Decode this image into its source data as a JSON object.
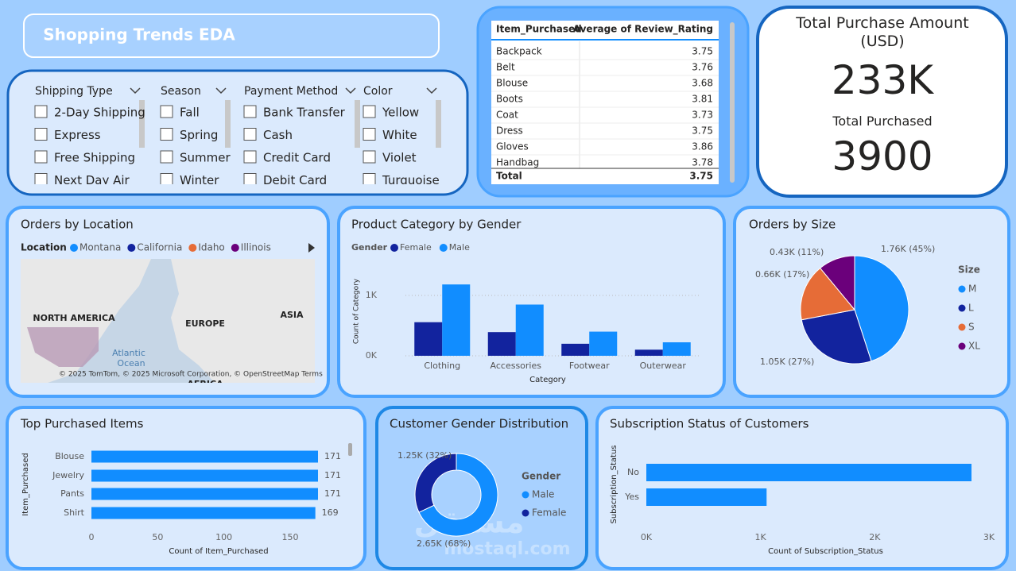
{
  "header": {
    "title": "Shopping Trends EDA"
  },
  "slicers": [
    {
      "name": "Shipping Type",
      "items": [
        "2-Day Shipping",
        "Express",
        "Free Shipping",
        "Next Day Air"
      ]
    },
    {
      "name": "Season",
      "items": [
        "Fall",
        "Spring",
        "Summer",
        "Winter"
      ]
    },
    {
      "name": "Payment Method",
      "items": [
        "Bank Transfer",
        "Cash",
        "Credit Card",
        "Debit Card"
      ]
    },
    {
      "name": "Color",
      "items": [
        "Yellow",
        "White",
        "Violet",
        "Turquoise"
      ]
    }
  ],
  "table": {
    "columns": [
      "Item_Purchased",
      "Average of Review_Rating"
    ],
    "rows": [
      [
        "Backpack",
        3.75
      ],
      [
        "Belt",
        3.76
      ],
      [
        "Blouse",
        3.68
      ],
      [
        "Boots",
        3.81
      ],
      [
        "Coat",
        3.73
      ],
      [
        "Dress",
        3.75
      ],
      [
        "Gloves",
        3.86
      ],
      [
        "Handbag",
        3.78
      ]
    ],
    "total": [
      "Total",
      3.75
    ]
  },
  "cards": [
    {
      "label": "Total Purchase Amount (USD)",
      "value": "233K"
    },
    {
      "label": "Total Purchased",
      "value": 3900
    }
  ],
  "watermark": [
    "مستقل",
    "mostaql.com"
  ],
  "chart_data": [
    {
      "type": "map",
      "title": "Orders by Location",
      "legend_title": "Location",
      "series": [
        {
          "name": "Montana",
          "color": "#118dff"
        },
        {
          "name": "California",
          "color": "#12239e"
        },
        {
          "name": "Idaho",
          "color": "#e66c37"
        },
        {
          "name": "Illinois",
          "color": "#6b007b"
        }
      ],
      "map_labels": [
        "NORTH AMERICA",
        "EUROPE",
        "ASIA",
        "Atlantic",
        "Ocean",
        "AFRICA"
      ],
      "attribution": "© 2025 TomTom, © 2025 Microsoft Corporation, © OpenStreetMap  Terms"
    },
    {
      "type": "bar",
      "title": "Product Category by Gender",
      "legend_title": "Gender",
      "categories": [
        "Clothing",
        "Accessories",
        "Footwear",
        "Outerwear"
      ],
      "series": [
        {
          "name": "Female",
          "color": "#12239e",
          "values": [
            556,
            392,
            199,
            101
          ]
        },
        {
          "name": "Male",
          "color": "#118dff",
          "values": [
            1181,
            848,
            400,
            223
          ]
        }
      ],
      "xlabel": "Category",
      "ylabel": "Count of Category",
      "ylim": [
        0,
        1420
      ],
      "yticks": [
        {
          "value": 0,
          "label": "0K"
        },
        {
          "value": 1000,
          "label": "1K"
        }
      ],
      "grid": true
    },
    {
      "type": "pie",
      "title": "Orders by Size",
      "legend_title": "Size",
      "categories": [
        "M",
        "L",
        "S",
        "XL"
      ],
      "values": [
        1755,
        1053,
        663,
        429
      ],
      "value_labels": [
        "1.76K (45%)",
        "1.05K (27%)",
        "0.66K (17%)",
        "0.43K (11%)"
      ],
      "colors": [
        "#118dff",
        "#12239e",
        "#e66c37",
        "#6b007b"
      ]
    },
    {
      "type": "hbar",
      "title": "Top Purchased Items",
      "categories": [
        "Blouse",
        "Jewelry",
        "Pants",
        "Shirt"
      ],
      "values": [
        171,
        171,
        171,
        169
      ],
      "color": "#118dff",
      "xlabel": "Count of Item_Purchased",
      "ylabel": "Item_Purchased",
      "xlim": [
        0,
        180
      ],
      "xticks": [
        0,
        50,
        100,
        150
      ]
    },
    {
      "type": "donut",
      "title": "Customer Gender Distribution",
      "legend_title": "Gender",
      "categories": [
        "Male",
        "Female"
      ],
      "values": [
        2652,
        1248
      ],
      "value_labels": [
        "2.65K (68%)",
        "1.25K (32%)"
      ],
      "colors": [
        "#118dff",
        "#12239e"
      ]
    },
    {
      "type": "hbar",
      "title": "Subscription Status of Customers",
      "categories": [
        "No",
        "Yes"
      ],
      "values": [
        2847,
        1053
      ],
      "color": "#118dff",
      "xlabel": "Count of Subscription_Status",
      "ylabel": "Subscription_Status",
      "xlim": [
        0,
        3000
      ],
      "xticks": [
        {
          "value": 0,
          "label": "0K"
        },
        {
          "value": 1000,
          "label": "1K"
        },
        {
          "value": 2000,
          "label": "2K"
        },
        {
          "value": 3000,
          "label": "3K"
        }
      ]
    }
  ]
}
